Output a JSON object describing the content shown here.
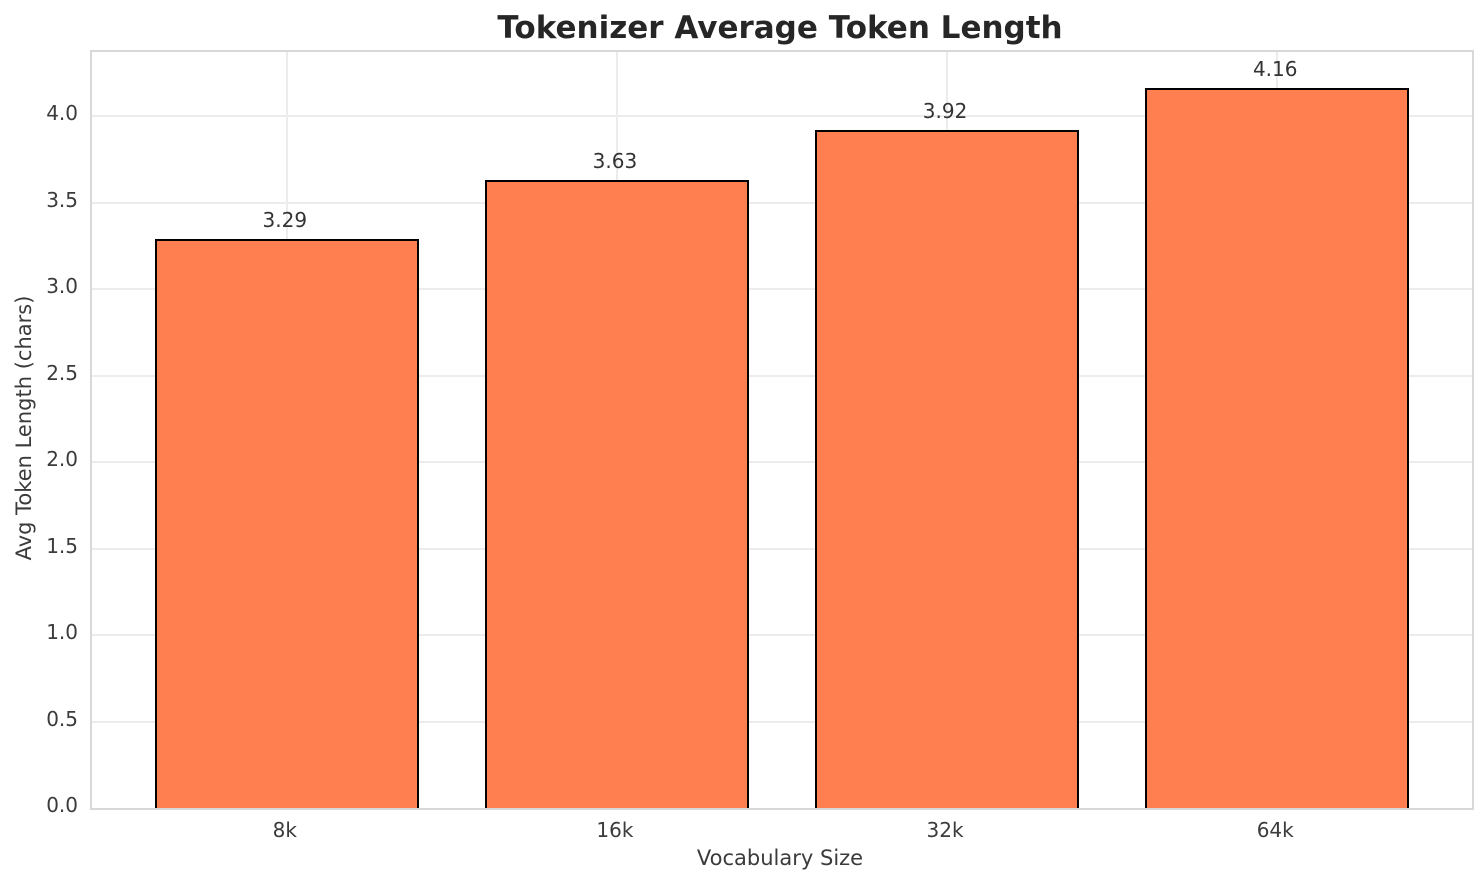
{
  "chart_data": {
    "type": "bar",
    "title": "Tokenizer Average Token Length",
    "xlabel": "Vocabulary Size",
    "ylabel": "Avg Token Length (chars)",
    "categories": [
      "8k",
      "16k",
      "32k",
      "64k"
    ],
    "values": [
      3.29,
      3.63,
      3.92,
      4.16
    ],
    "value_labels": [
      "3.29",
      "3.63",
      "3.92",
      "4.16"
    ],
    "ylim": [
      0,
      4.37
    ],
    "yticks": [
      "0.0",
      "0.5",
      "1.0",
      "1.5",
      "2.0",
      "2.5",
      "3.0",
      "3.5",
      "4.0"
    ],
    "ytick_values": [
      0.0,
      0.5,
      1.0,
      1.5,
      2.0,
      2.5,
      3.0,
      3.5,
      4.0
    ],
    "grid": true,
    "legend": null,
    "bar_color": "#FF7F50",
    "bar_edge_color": "#000000",
    "grid_color": "#ececec",
    "title_color": "#262626",
    "text_color": "#3b3b3b"
  }
}
